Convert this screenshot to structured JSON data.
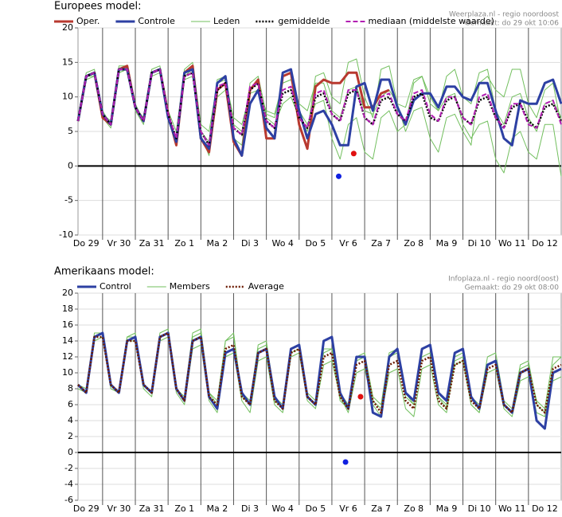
{
  "chart_data": [
    {
      "type": "line",
      "title": "Europees model:",
      "source": "Weerplaza.nl - regio noordoost",
      "created": "Gemaakt: do 29 okt 10:06",
      "x": [
        6,
        12,
        18,
        24,
        30,
        36,
        42,
        48,
        54,
        60,
        66,
        72,
        78,
        84,
        90,
        96,
        102,
        108,
        114,
        120,
        126,
        132,
        138,
        144,
        150,
        156,
        162,
        168,
        174,
        180,
        186,
        192,
        198,
        204,
        210,
        216,
        222,
        228,
        234,
        240,
        246,
        252,
        258,
        264,
        270,
        276,
        282,
        288,
        294,
        300,
        306,
        312,
        318,
        324,
        330,
        336,
        342,
        348,
        354,
        360
      ],
      "xlim": [
        6,
        360
      ],
      "xticks": [
        {
          "value": 12,
          "label": "Do 29"
        },
        {
          "value": 36,
          "label": "Vr 30"
        },
        {
          "value": 60,
          "label": "Za 31"
        },
        {
          "value": 84,
          "label": "Zo 1"
        },
        {
          "value": 108,
          "label": "Ma 2"
        },
        {
          "value": 132,
          "label": "Di 3"
        },
        {
          "value": 156,
          "label": "Wo 4"
        },
        {
          "value": 180,
          "label": "Do 5"
        },
        {
          "value": 204,
          "label": "Vr 6"
        },
        {
          "value": 228,
          "label": "Za 7"
        },
        {
          "value": 252,
          "label": "Zo 8"
        },
        {
          "value": 276,
          "label": "Ma 9"
        },
        {
          "value": 300,
          "label": "Di 10"
        },
        {
          "value": 324,
          "label": "Wo 11"
        },
        {
          "value": 348,
          "label": "Do 12"
        }
      ],
      "ylim": [
        -10,
        20
      ],
      "yticks": [
        -10,
        -5,
        0,
        5,
        10,
        15,
        20
      ],
      "grid": true,
      "zero_line": true,
      "series": [
        {
          "name": "Oper.",
          "color": "#b8392f",
          "style": "solid",
          "width": 3,
          "values": [
            6.5,
            13,
            13.5,
            7,
            6,
            14,
            14.5,
            8.5,
            6.5,
            13.5,
            14,
            7.5,
            3,
            13.5,
            14.5,
            4,
            2,
            11,
            12,
            3.5,
            1.5,
            11,
            12.5,
            4,
            4,
            13,
            13.5,
            6,
            2.5,
            11.5,
            12.5,
            12,
            12,
            13.5,
            13.5,
            8.5,
            8.5,
            10.5,
            11,
            null,
            null,
            null,
            null,
            null,
            null,
            null,
            null,
            null,
            null,
            null,
            null,
            null,
            null,
            null,
            null,
            null,
            null,
            null,
            null,
            null
          ]
        },
        {
          "name": "Controle",
          "color": "#2d40a3",
          "style": "solid",
          "width": 3,
          "values": [
            6.5,
            13,
            13.5,
            7.5,
            6,
            14,
            14,
            8.5,
            6.5,
            13.5,
            14,
            7,
            3.5,
            13.5,
            14,
            4,
            2.5,
            12,
            13,
            4,
            1.5,
            9,
            11,
            5.5,
            4,
            13.5,
            14,
            8,
            4,
            7.5,
            8,
            6,
            3,
            3,
            11.5,
            12,
            8,
            12.5,
            12.5,
            8.5,
            6,
            9.5,
            10.5,
            10.5,
            8.5,
            11.5,
            11.5,
            10,
            9.5,
            12,
            12,
            8,
            4,
            3,
            9.5,
            9,
            9,
            12,
            12.5,
            9
          ]
        },
        {
          "name": "Leden",
          "color": "#72bf5e",
          "style": "solid",
          "width": 1,
          "values": [
            [
              6.5,
              13.5,
              14,
              8,
              6,
              14.5,
              14.5,
              9,
              6.5,
              14,
              14.5,
              8,
              3.5,
              13,
              14,
              5,
              3.5,
              12.5,
              13,
              6,
              5,
              11,
              12,
              7,
              6,
              9,
              10,
              7,
              5,
              13,
              13.5,
              10,
              9,
              15,
              15.5,
              10,
              7,
              14,
              14.5,
              9,
              5,
              8,
              8.5,
              4,
              2,
              7,
              7.5,
              5,
              3,
              12,
              13,
              11,
              10,
              14,
              14,
              9,
              7,
              11,
              12,
              6
            ],
            [
              7,
              13,
              13,
              7,
              5.5,
              13.5,
              14,
              8,
              6,
              13,
              13.5,
              7,
              3,
              12.5,
              13,
              4.5,
              1.5,
              10,
              11,
              4,
              3,
              12,
              13,
              7.5,
              7,
              12,
              12.5,
              8,
              6,
              9,
              9.5,
              4,
              1,
              6,
              7,
              2,
              1,
              7,
              8,
              5,
              6,
              12,
              13,
              9,
              8,
              10,
              10.5,
              6,
              4,
              6,
              6.5,
              1,
              -1,
              4,
              5,
              2,
              1,
              6,
              6,
              -1.5
            ],
            [
              6.5,
              12.5,
              13,
              7.5,
              6.5,
              13.5,
              14,
              8.5,
              7,
              13.5,
              14,
              8,
              5,
              14,
              15,
              6,
              5,
              12,
              12.5,
              7,
              6,
              10.5,
              11,
              8,
              7.5,
              12,
              12.5,
              9,
              8,
              12,
              12,
              8,
              7,
              11,
              11.5,
              8,
              7.5,
              10,
              11,
              9,
              8.5,
              12.5,
              13,
              10,
              8,
              13,
              14,
              10,
              9,
              13.5,
              14,
              8,
              6,
              10,
              10.5,
              7,
              5,
              9,
              9.5,
              7
            ]
          ]
        },
        {
          "name": "gemiddelde",
          "color": "#000000",
          "style": "dotted",
          "width": 2.5,
          "values": [
            6.5,
            13,
            13.5,
            7.5,
            6,
            14,
            14,
            8.5,
            6.5,
            13.5,
            14,
            7.5,
            4,
            13,
            13.5,
            5,
            3,
            11,
            12,
            5.5,
            4.5,
            11,
            12,
            6.5,
            5.5,
            10.5,
            11,
            7,
            5.5,
            10,
            10.5,
            7.5,
            6.5,
            10.5,
            11,
            7,
            6,
            9.5,
            10,
            7.5,
            6.5,
            10,
            10.5,
            7,
            6.5,
            9.5,
            10,
            7,
            6,
            9.5,
            10,
            7,
            5.5,
            8.5,
            9,
            6.5,
            5.5,
            8.5,
            9,
            6.5
          ]
        },
        {
          "name": "mediaan (middelste waarde)",
          "color": "#b21fb2",
          "style": "dashed",
          "width": 2,
          "values": [
            6.5,
            13,
            13.5,
            7.5,
            6,
            14,
            14,
            8.5,
            6.5,
            13.5,
            14,
            7.5,
            4,
            13,
            13.5,
            5,
            3,
            11.5,
            12,
            5.5,
            4.5,
            11.5,
            12,
            6.5,
            5.5,
            11,
            11.5,
            7,
            5.5,
            10.5,
            11,
            7.5,
            6.5,
            11,
            11,
            7,
            6,
            10,
            10.5,
            7.5,
            6.5,
            10.5,
            11,
            7.5,
            6.5,
            10,
            10,
            7,
            6,
            10,
            10.5,
            7,
            5.5,
            9,
            9,
            6,
            5.5,
            9,
            9.5,
            6
          ]
        }
      ],
      "markers": [
        {
          "x": 208,
          "y": 1.8,
          "color": "#e01010"
        },
        {
          "x": 197,
          "y": -1.5,
          "color": "#1020e0"
        }
      ]
    },
    {
      "type": "line",
      "title": "Amerikaans model:",
      "source": "Infoplaza.nl - regio noord(oost)",
      "created": "Gemaakt: do 29 okt 08:00",
      "x": [
        6,
        12,
        18,
        24,
        30,
        36,
        42,
        48,
        54,
        60,
        66,
        72,
        78,
        84,
        90,
        96,
        102,
        108,
        114,
        120,
        126,
        132,
        138,
        144,
        150,
        156,
        162,
        168,
        174,
        180,
        186,
        192,
        198,
        204,
        210,
        216,
        222,
        228,
        234,
        240,
        246,
        252,
        258,
        264,
        270,
        276,
        282,
        288,
        294,
        300,
        306,
        312,
        318,
        324,
        330,
        336,
        342,
        348,
        354,
        360
      ],
      "xlim": [
        6,
        360
      ],
      "xticks": [
        {
          "value": 12,
          "label": "Do 29"
        },
        {
          "value": 36,
          "label": "Vr 30"
        },
        {
          "value": 60,
          "label": "Za 31"
        },
        {
          "value": 84,
          "label": "Zo 1"
        },
        {
          "value": 108,
          "label": "Ma 2"
        },
        {
          "value": 132,
          "label": "Di 3"
        },
        {
          "value": 156,
          "label": "Wo 4"
        },
        {
          "value": 180,
          "label": "Do 5"
        },
        {
          "value": 204,
          "label": "Vr 6"
        },
        {
          "value": 228,
          "label": "Za 7"
        },
        {
          "value": 252,
          "label": "Zo 8"
        },
        {
          "value": 276,
          "label": "Ma 9"
        },
        {
          "value": 300,
          "label": "Di 10"
        },
        {
          "value": 324,
          "label": "Wo 11"
        },
        {
          "value": 348,
          "label": "Do 12"
        }
      ],
      "ylim": [
        -6,
        20
      ],
      "yticks": [
        -6,
        -4,
        -2,
        0,
        2,
        4,
        6,
        8,
        10,
        12,
        14,
        16,
        18,
        20
      ],
      "grid": true,
      "zero_line": true,
      "series": [
        {
          "name": "Control",
          "color": "#2d40a3",
          "style": "solid",
          "width": 3,
          "values": [
            8.5,
            7.5,
            14.5,
            15,
            8.5,
            7.5,
            14,
            14.5,
            8.5,
            7.5,
            14.5,
            15,
            8,
            6.5,
            14,
            14.5,
            7,
            5.5,
            12.5,
            13,
            7.5,
            6,
            12.5,
            13,
            7,
            5.5,
            13,
            13.5,
            7,
            6,
            14,
            14.5,
            7.5,
            5.5,
            12,
            12,
            5,
            4.5,
            12,
            13,
            7.5,
            6.5,
            13,
            13.5,
            7.5,
            6.5,
            12.5,
            13,
            7,
            5.5,
            11,
            11.5,
            6,
            5,
            10,
            10.5,
            4,
            3,
            10,
            10.5
          ]
        },
        {
          "name": "Members",
          "color": "#72bf5e",
          "style": "solid",
          "width": 1,
          "values": [
            [
              8.5,
              7.5,
              14.5,
              15,
              8.5,
              7.5,
              14.5,
              15,
              8.5,
              7.5,
              15,
              15.5,
              8,
              7,
              15,
              15.5,
              7.5,
              6.5,
              14,
              15,
              7,
              6,
              13,
              13.5,
              6.5,
              5.5,
              13,
              13.5,
              7.5,
              6.5,
              13,
              13,
              6.5,
              5.5,
              12,
              12.5,
              7,
              6,
              12.5,
              13,
              7.5,
              6,
              12,
              12.5,
              7,
              6,
              11,
              11.5,
              6,
              5,
              10,
              10.5,
              5.5,
              4.5,
              9,
              9.5,
              5,
              4.5,
              11,
              12
            ],
            [
              8,
              7.5,
              14,
              14.5,
              8,
              7.5,
              14,
              14,
              8,
              7,
              14,
              14.5,
              7.5,
              6,
              13,
              13.5,
              6.5,
              5,
              12,
              12.5,
              6.5,
              5,
              11.5,
              12,
              6,
              5,
              12,
              12.5,
              6.5,
              5.5,
              11,
              11.5,
              7,
              5,
              10,
              10.5,
              6,
              4.5,
              10,
              10.5,
              5.5,
              4.5,
              10.5,
              11,
              6,
              5,
              11.5,
              12,
              7,
              6,
              12,
              12.5,
              6.5,
              5.5,
              11,
              11.5,
              6,
              5,
              9,
              9.5
            ],
            [
              8.5,
              8,
              15,
              15,
              8.5,
              7.5,
              14.5,
              14.5,
              8.5,
              7.5,
              14.5,
              15,
              8,
              6.5,
              14.5,
              15,
              7.5,
              6,
              14,
              14.5,
              7.5,
              6.5,
              13.5,
              14,
              7,
              6,
              12.5,
              13,
              7,
              6,
              12.5,
              13,
              7.5,
              6,
              11.5,
              12,
              6.5,
              5.5,
              12,
              12.5,
              7,
              6,
              13,
              13.5,
              7,
              5.5,
              12,
              12.5,
              6,
              5,
              11,
              11.5,
              6,
              5,
              10.5,
              11,
              6.5,
              5.5,
              12,
              12
            ]
          ]
        },
        {
          "name": "Average",
          "color": "#6b1a00",
          "style": "dotted",
          "width": 2.5,
          "values": [
            8.5,
            7.5,
            14.5,
            14.5,
            8.5,
            7.5,
            14,
            14,
            8.5,
            7.5,
            14.5,
            15,
            8,
            6.5,
            14,
            14.5,
            7,
            6,
            13,
            13.5,
            7,
            6,
            12.5,
            13,
            6.5,
            5.5,
            12.5,
            13,
            7,
            6,
            12,
            12.5,
            7,
            5.5,
            11,
            11.5,
            6.5,
            5,
            11,
            11.5,
            6.5,
            5.5,
            11.5,
            12,
            6.5,
            5.5,
            11,
            11.5,
            6.5,
            5.5,
            10.5,
            11,
            6,
            5,
            10,
            10.5,
            6,
            5,
            10.5,
            11
          ]
        }
      ],
      "markers": [
        {
          "x": 213,
          "y": 7,
          "color": "#e01010"
        },
        {
          "x": 202,
          "y": -1.2,
          "color": "#1020e0"
        }
      ]
    }
  ]
}
